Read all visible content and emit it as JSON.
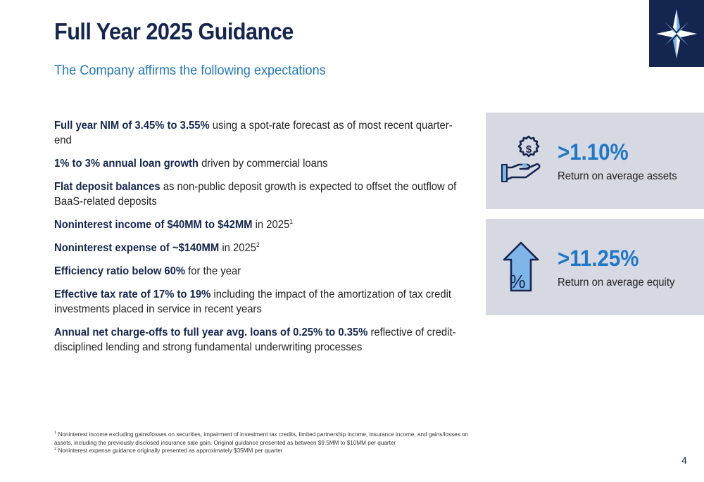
{
  "header": {
    "title": "Full Year 2025 Guidance",
    "subtitle": "The Company affirms the following expectations"
  },
  "logo": {
    "icon": "compass-star-icon",
    "bg_color": "#14264f"
  },
  "bullets": [
    {
      "bold": "Full year NIM of 3.45% to 3.55%",
      "rest": " using a spot-rate forecast as of most recent quarter-end",
      "sup": ""
    },
    {
      "bold": "1% to 3% annual loan growth",
      "rest": " driven by commercial loans",
      "sup": ""
    },
    {
      "bold": "Flat deposit balances",
      "rest": " as non-public deposit growth is expected to offset the outflow of BaaS-related deposits",
      "sup": ""
    },
    {
      "bold": "Noninterest income of $40MM to $42MM",
      "rest": " in 2025",
      "sup": "1"
    },
    {
      "bold": "Noninterest expense of ~$140MM",
      "rest": " in 2025",
      "sup": "2"
    },
    {
      "bold": "Efficiency ratio below 60%",
      "rest": " for the year",
      "sup": ""
    },
    {
      "bold": "Effective tax rate of 17% to 19%",
      "rest": " including the impact of the amortization of tax credit investments placed in service in recent years",
      "sup": ""
    },
    {
      "bold": "Annual net charge-offs to full year avg. loans of 0.25% to 0.35%",
      "rest": " reflective of credit-disciplined lending and strong fundamental underwriting processes",
      "sup": ""
    }
  ],
  "metrics": [
    {
      "value": ">1.10%",
      "label": "Return on average assets",
      "icon": "hand-dollar-icon"
    },
    {
      "value": ">11.25%",
      "label": "Return on average equity",
      "icon": "up-arrow-percent-icon"
    }
  ],
  "footnotes": [
    {
      "mark": "1",
      "text": " Noninterest income excluding gains/losses on securities, impairment of investment tax credits, limited partnership income, insurance income, and gains/losses on assets, including the previously disclosed insurance sale gain. Original guidance presented as between $9.5MM to $10MM per quarter"
    },
    {
      "mark": "2",
      "text": " Noninterest expense guidance originally presented as approximately $35MM per quarter"
    }
  ],
  "page_number": "4",
  "colors": {
    "navy": "#14264f",
    "accent_blue": "#1f77c8",
    "card_bg": "#d7d9e2"
  }
}
